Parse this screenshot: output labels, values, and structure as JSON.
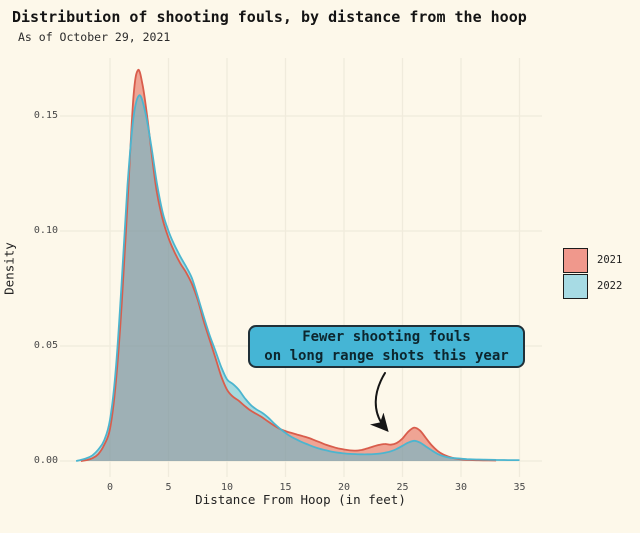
{
  "colors": {
    "background": "#fdf8ea",
    "grid": "#f0ebdc",
    "title_text": "#141414",
    "axis_text": "#4a4a4a",
    "arrow": "#151515"
  },
  "chart_data": {
    "type": "area",
    "title": "Distribution of shooting fouls, by distance from the hoop",
    "subtitle": "As of October 29, 2021",
    "xlabel": "Distance From Hoop (in feet)",
    "ylabel": "Density",
    "x_ticks": [
      0,
      5,
      10,
      15,
      20,
      25,
      30,
      35
    ],
    "y_ticks": [
      "0.00",
      "0.05",
      "0.10",
      "0.15"
    ],
    "y_tick_values": [
      0.0,
      0.05,
      0.1,
      0.15
    ],
    "xlim": [
      -4.3,
      36.9
    ],
    "ylim": [
      -0.007,
      0.176
    ],
    "grid": true,
    "legend_position": "right",
    "series": [
      {
        "name": "2021",
        "line_color": "#d95d4c",
        "fill_color": "rgba(226,80,62,0.50)",
        "swatch_color": "#f0988c",
        "points": [
          [
            -2.5,
            0
          ],
          [
            -2,
            0.0004
          ],
          [
            -1.5,
            0.0012
          ],
          [
            -1,
            0.003
          ],
          [
            -0.5,
            0.007
          ],
          [
            0,
            0.014
          ],
          [
            0.5,
            0.034
          ],
          [
            1,
            0.068
          ],
          [
            1.5,
            0.112
          ],
          [
            2,
            0.158
          ],
          [
            2.4,
            0.17
          ],
          [
            2.8,
            0.163
          ],
          [
            3.2,
            0.149
          ],
          [
            3.6,
            0.132
          ],
          [
            4,
            0.117
          ],
          [
            4.5,
            0.105
          ],
          [
            5,
            0.097
          ],
          [
            5.5,
            0.091
          ],
          [
            6,
            0.086
          ],
          [
            6.5,
            0.082
          ],
          [
            7,
            0.077
          ],
          [
            7.5,
            0.07
          ],
          [
            8,
            0.061
          ],
          [
            8.5,
            0.053
          ],
          [
            9,
            0.045
          ],
          [
            9.5,
            0.037
          ],
          [
            10,
            0.031
          ],
          [
            10.5,
            0.028
          ],
          [
            11,
            0.0262
          ],
          [
            11.5,
            0.024
          ],
          [
            12,
            0.022
          ],
          [
            12.5,
            0.0205
          ],
          [
            13,
            0.019
          ],
          [
            13.5,
            0.0172
          ],
          [
            14,
            0.0155
          ],
          [
            14.5,
            0.014
          ],
          [
            15,
            0.013
          ],
          [
            15.5,
            0.0122
          ],
          [
            16,
            0.0115
          ],
          [
            16.5,
            0.0108
          ],
          [
            17,
            0.01
          ],
          [
            17.5,
            0.009
          ],
          [
            18,
            0.008
          ],
          [
            18.5,
            0.007
          ],
          [
            19,
            0.0062
          ],
          [
            19.5,
            0.0055
          ],
          [
            20,
            0.005
          ],
          [
            20.5,
            0.0046
          ],
          [
            21,
            0.0045
          ],
          [
            21.5,
            0.0048
          ],
          [
            22,
            0.0055
          ],
          [
            22.5,
            0.0063
          ],
          [
            23,
            0.007
          ],
          [
            23.5,
            0.0074
          ],
          [
            24,
            0.0071
          ],
          [
            24.5,
            0.0078
          ],
          [
            25,
            0.0098
          ],
          [
            25.5,
            0.0128
          ],
          [
            26,
            0.0145
          ],
          [
            26.5,
            0.0132
          ],
          [
            27,
            0.01
          ],
          [
            27.5,
            0.0068
          ],
          [
            28,
            0.0044
          ],
          [
            28.5,
            0.0028
          ],
          [
            29,
            0.0018
          ],
          [
            29.5,
            0.0011
          ],
          [
            30,
            0.0007
          ],
          [
            30.5,
            0.0005
          ],
          [
            31,
            0.0004
          ],
          [
            32,
            0.0003
          ],
          [
            33,
            0.0002
          ]
        ]
      },
      {
        "name": "2022",
        "line_color": "#4cb5cf",
        "fill_color": "rgba(84,187,211,0.52)",
        "swatch_color": "#a7dbe4",
        "points": [
          [
            -2.9,
            0
          ],
          [
            -2.4,
            0.0006
          ],
          [
            -2,
            0.0012
          ],
          [
            -1.5,
            0.0025
          ],
          [
            -1,
            0.005
          ],
          [
            -0.5,
            0.009
          ],
          [
            0,
            0.018
          ],
          [
            0.5,
            0.04
          ],
          [
            1,
            0.078
          ],
          [
            1.5,
            0.12
          ],
          [
            2,
            0.149
          ],
          [
            2.5,
            0.159
          ],
          [
            3,
            0.152
          ],
          [
            3.5,
            0.138
          ],
          [
            4,
            0.121
          ],
          [
            4.5,
            0.108
          ],
          [
            5,
            0.1
          ],
          [
            5.5,
            0.094
          ],
          [
            6,
            0.089
          ],
          [
            6.5,
            0.0845
          ],
          [
            7,
            0.0795
          ],
          [
            7.5,
            0.0715
          ],
          [
            8,
            0.063
          ],
          [
            8.5,
            0.055
          ],
          [
            9,
            0.048
          ],
          [
            9.5,
            0.041
          ],
          [
            10,
            0.0355
          ],
          [
            10.5,
            0.0335
          ],
          [
            11,
            0.031
          ],
          [
            11.5,
            0.0275
          ],
          [
            12,
            0.0245
          ],
          [
            12.5,
            0.0225
          ],
          [
            13,
            0.021
          ],
          [
            13.5,
            0.019
          ],
          [
            14,
            0.0165
          ],
          [
            14.5,
            0.0142
          ],
          [
            15,
            0.0122
          ],
          [
            15.5,
            0.0105
          ],
          [
            16,
            0.0092
          ],
          [
            16.5,
            0.008
          ],
          [
            17,
            0.007
          ],
          [
            17.5,
            0.006
          ],
          [
            18,
            0.0052
          ],
          [
            18.5,
            0.0046
          ],
          [
            19,
            0.004
          ],
          [
            19.5,
            0.0036
          ],
          [
            20,
            0.0033
          ],
          [
            20.5,
            0.0031
          ],
          [
            21,
            0.003
          ],
          [
            21.5,
            0.0029
          ],
          [
            22,
            0.0029
          ],
          [
            22.5,
            0.003
          ],
          [
            23,
            0.0032
          ],
          [
            23.5,
            0.0036
          ],
          [
            24,
            0.0042
          ],
          [
            24.5,
            0.0052
          ],
          [
            25,
            0.0066
          ],
          [
            25.5,
            0.008
          ],
          [
            26,
            0.0088
          ],
          [
            26.5,
            0.008
          ],
          [
            27,
            0.0063
          ],
          [
            27.5,
            0.0046
          ],
          [
            28,
            0.0031
          ],
          [
            28.5,
            0.0021
          ],
          [
            29,
            0.0015
          ],
          [
            29.5,
            0.0012
          ],
          [
            30,
            0.001
          ],
          [
            30.5,
            0.0008
          ],
          [
            31,
            0.0007
          ],
          [
            32,
            0.0006
          ],
          [
            33,
            0.0005
          ],
          [
            34,
            0.0004
          ],
          [
            35,
            0.0004
          ]
        ]
      }
    ],
    "annotation": {
      "line1": "Fewer shooting fouls",
      "line2": "on long range shots this year",
      "box_fill": "#45b5d5",
      "box_border": "#203038",
      "text_color": "#0d262e"
    }
  }
}
